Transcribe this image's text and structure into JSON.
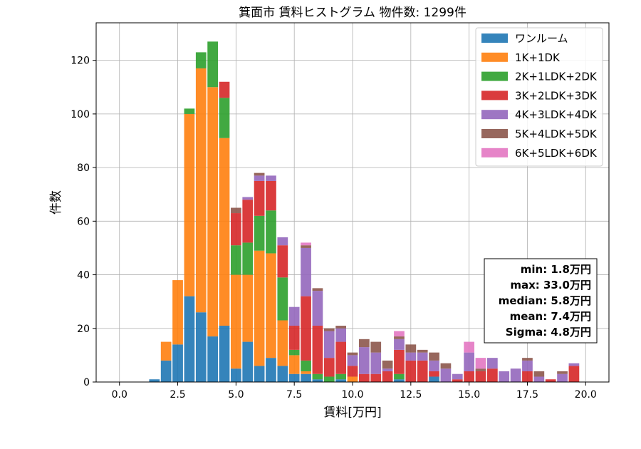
{
  "chart_data": {
    "type": "bar",
    "title": "箕面市 賃料ヒストグラム  物件数: 1299件",
    "xlabel": "賃料[万円]",
    "ylabel": "件数",
    "xlim": [
      -1.0,
      21.0
    ],
    "ylim": [
      0,
      134
    ],
    "xticks": [
      0.0,
      2.5,
      5.0,
      7.5,
      10.0,
      12.5,
      15.0,
      17.5,
      20.0
    ],
    "xtick_labels": [
      "0.0",
      "2.5",
      "5.0",
      "7.5",
      "10.0",
      "12.5",
      "15.0",
      "17.5",
      "20.0"
    ],
    "yticks": [
      0,
      20,
      40,
      60,
      80,
      100,
      120
    ],
    "ytick_labels": [
      "0",
      "20",
      "40",
      "60",
      "80",
      "100",
      "120"
    ],
    "grid": true,
    "stacked": true,
    "bin_width": 0.5,
    "bar_width": 0.45,
    "legend_position": "top-right",
    "x": [
      1.5,
      2.0,
      2.5,
      3.0,
      3.5,
      4.0,
      4.5,
      5.0,
      5.5,
      6.0,
      6.5,
      7.0,
      7.5,
      8.0,
      8.5,
      9.0,
      9.5,
      10.0,
      10.5,
      11.0,
      11.5,
      12.0,
      12.5,
      13.0,
      13.5,
      14.0,
      14.5,
      15.0,
      15.5,
      16.0,
      16.5,
      17.0,
      17.5,
      18.0,
      18.5,
      19.0,
      19.5
    ],
    "series": [
      {
        "name": "ワンルーム",
        "color": "#1f77b4",
        "values": [
          1,
          8,
          14,
          32,
          26,
          17,
          21,
          5,
          15,
          6,
          9,
          6,
          3,
          3,
          1,
          0,
          1,
          0,
          0,
          0,
          0,
          1,
          0,
          0,
          2,
          0,
          0,
          0,
          0,
          0,
          0,
          0,
          0,
          0,
          0,
          0,
          0
        ]
      },
      {
        "name": "1K+1DK",
        "color": "#ff7f0e",
        "values": [
          0,
          7,
          24,
          68,
          91,
          93,
          70,
          35,
          25,
          43,
          39,
          17,
          7,
          1,
          0,
          0,
          0,
          2,
          0,
          0,
          0,
          0,
          0,
          0,
          0,
          0,
          0,
          0,
          0,
          0,
          0,
          0,
          0,
          0,
          0,
          0,
          0
        ]
      },
      {
        "name": "2K+1LDK+2DK",
        "color": "#2ca02c",
        "values": [
          0,
          0,
          0,
          2,
          6,
          17,
          15,
          11,
          12,
          13,
          16,
          16,
          2,
          4,
          2,
          2,
          2,
          0,
          0,
          0,
          0,
          2,
          0,
          0,
          0,
          0,
          0,
          0,
          0,
          0,
          0,
          0,
          0,
          0,
          0,
          0,
          0
        ]
      },
      {
        "name": "3K+2LDK+3DK",
        "color": "#d62728",
        "values": [
          0,
          0,
          0,
          0,
          0,
          0,
          6,
          12,
          16,
          13,
          11,
          12,
          9,
          24,
          18,
          7,
          12,
          4,
          3,
          3,
          4,
          9,
          8,
          8,
          2,
          0,
          1,
          4,
          4,
          5,
          0,
          0,
          4,
          0,
          1,
          0,
          6
        ]
      },
      {
        "name": "4K+3LDK+4DK",
        "color": "#9467bd",
        "values": [
          0,
          0,
          0,
          0,
          0,
          0,
          0,
          0,
          1,
          2,
          2,
          3,
          7,
          18,
          13,
          10,
          5,
          4,
          10,
          8,
          1,
          4,
          3,
          3,
          4,
          5,
          2,
          7,
          0,
          4,
          4,
          5,
          4,
          2,
          0,
          3,
          1
        ]
      },
      {
        "name": "5K+4LDK+5DK",
        "color": "#8c564b",
        "values": [
          0,
          0,
          0,
          0,
          0,
          0,
          0,
          2,
          0,
          1,
          0,
          0,
          0,
          1,
          1,
          1,
          1,
          1,
          3,
          4,
          3,
          1,
          3,
          1,
          3,
          2,
          0,
          0,
          1,
          0,
          0,
          0,
          1,
          2,
          0,
          1,
          0
        ]
      },
      {
        "name": "6K+5LDK+6DK",
        "color": "#e377c2",
        "values": [
          0,
          0,
          0,
          0,
          0,
          0,
          0,
          0,
          0,
          0,
          0,
          0,
          0,
          1,
          0,
          0,
          0,
          0,
          0,
          0,
          0,
          2,
          0,
          0,
          0,
          0,
          0,
          4,
          4,
          0,
          0,
          0,
          0,
          0,
          0,
          0,
          0
        ]
      }
    ],
    "annotation": [
      "min: 1.8万円",
      "max: 33.0万円",
      "median: 5.8万円",
      "mean: 7.4万円",
      "Sigma: 4.8万円"
    ]
  }
}
